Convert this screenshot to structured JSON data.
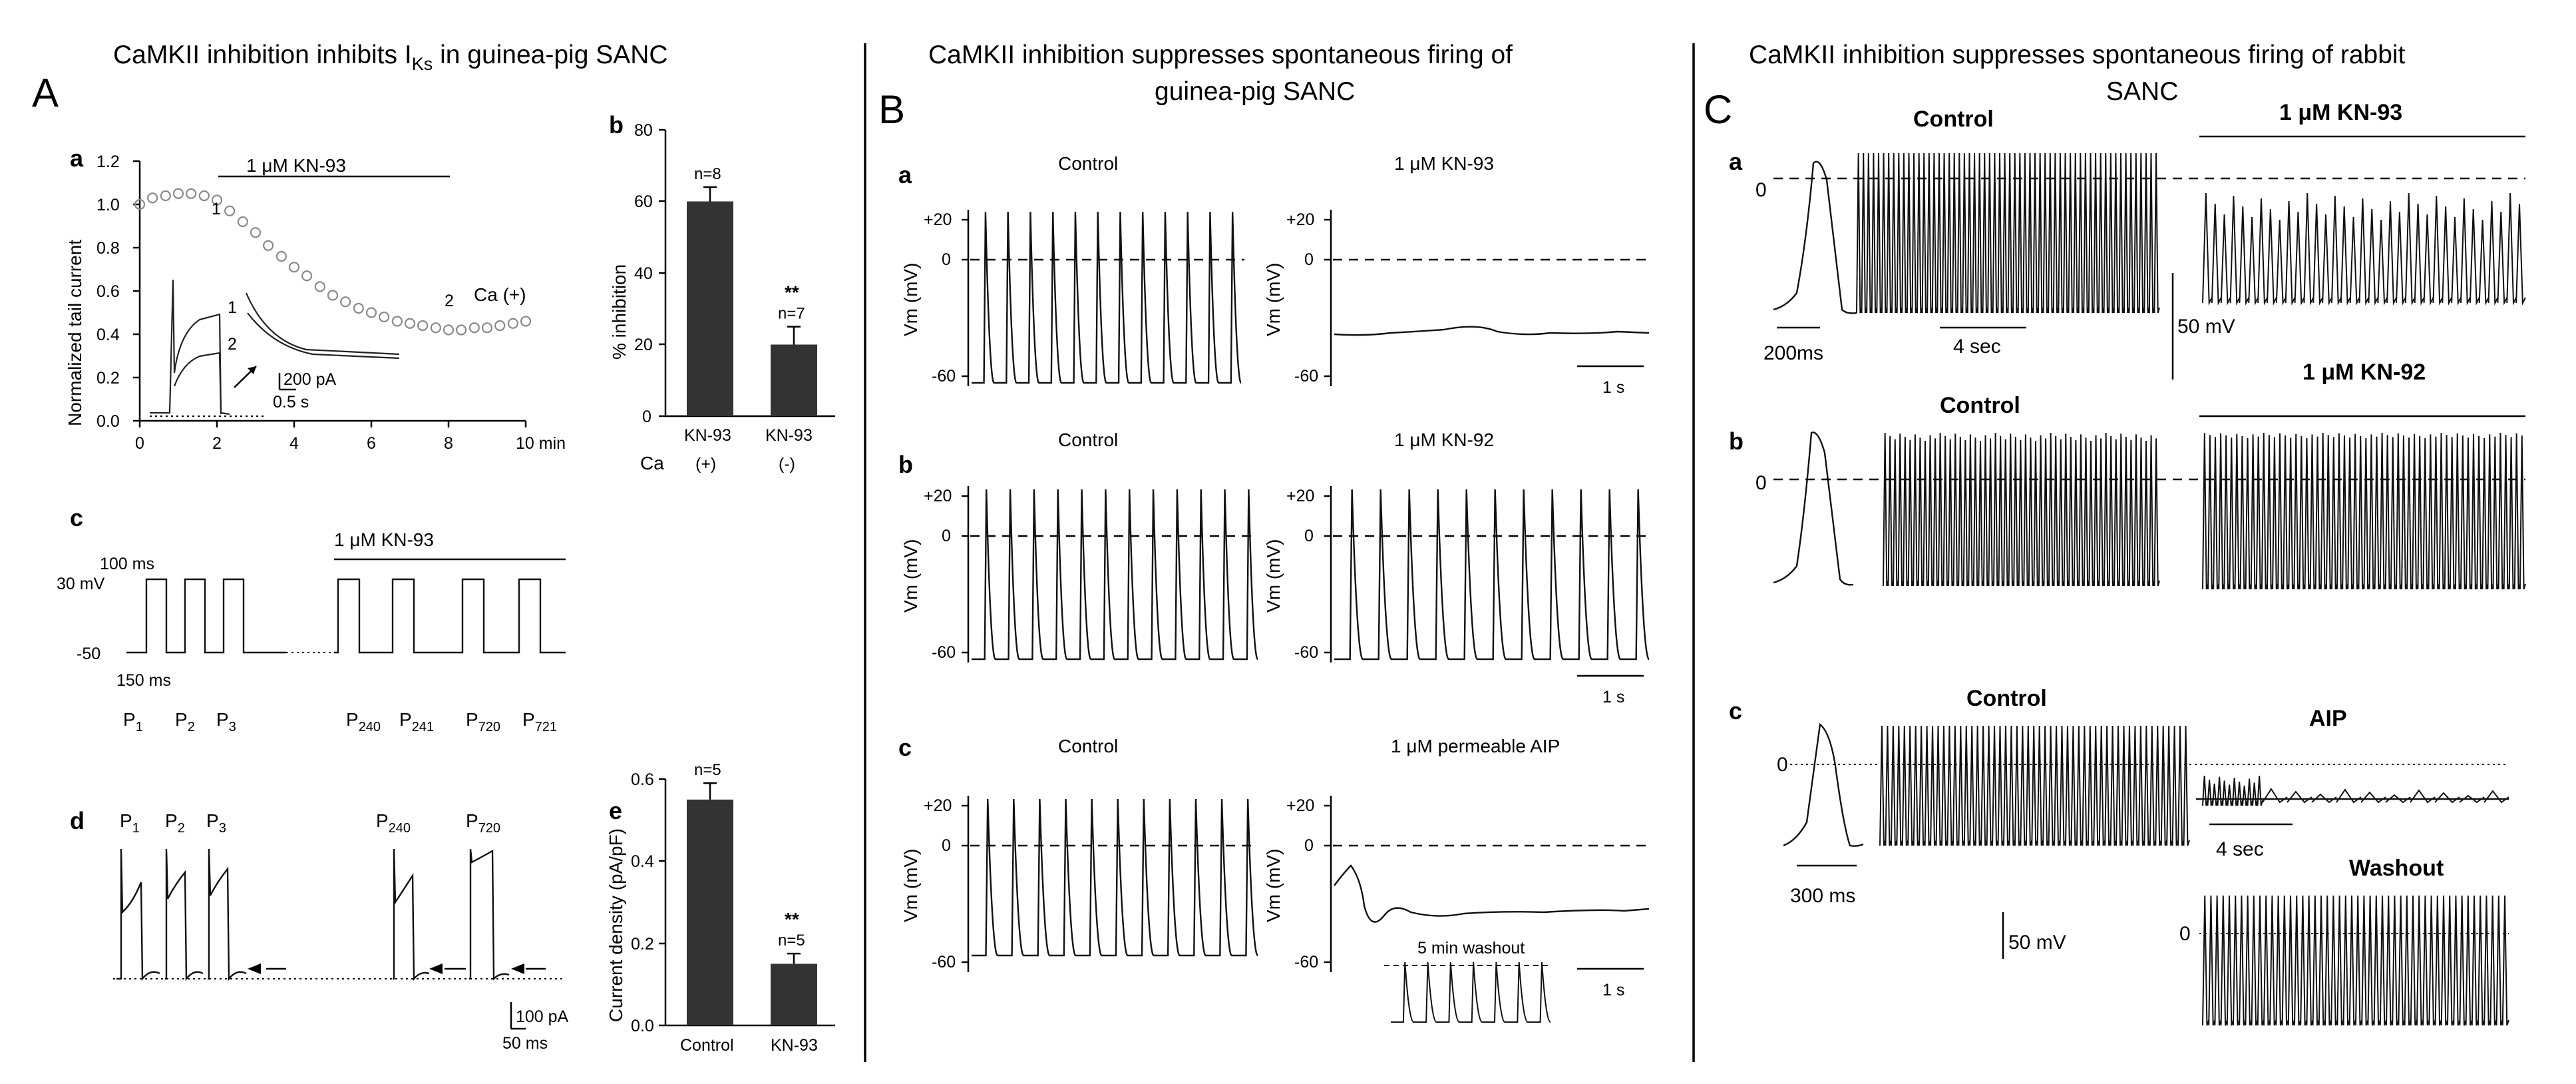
{
  "colors": {
    "trace": "#111111",
    "bar": "#333333",
    "marker": "#8a8a8a",
    "background": "#ffffff"
  },
  "sections": {
    "A": {
      "letter": "A",
      "title_main": "CaMKII inhibition inhibits I",
      "title_sub": "Ks",
      "title_tail": " in guinea-pig SANC"
    },
    "B": {
      "letter": "B",
      "title_line1": "CaMKII inhibition suppresses spontaneous firing of",
      "title_line2": "guinea-pig SANC"
    },
    "C": {
      "letter": "C",
      "title_line1": "CaMKII inhibition suppresses spontaneous firing of rabbit",
      "title_line2": "SANC"
    }
  },
  "panelA": {
    "a": {
      "label": "a",
      "ylabel": "Normalized tail current",
      "yticks": [
        "0.0",
        "0.2",
        "0.4",
        "0.6",
        "0.8",
        "1.0",
        "1.2"
      ],
      "xticks": [
        "0",
        "2",
        "4",
        "6",
        "8",
        "10 min"
      ],
      "drug": "1 μM KN-93",
      "ca_label": "Ca (+)",
      "mark1": "1",
      "mark2": "2",
      "inset_1": "1",
      "inset_2": "2",
      "scale_current": "200 pA",
      "scale_time": "0.5 s",
      "timecourse": {
        "x": [
          0,
          0.33,
          0.67,
          1.0,
          1.33,
          1.67,
          2.0,
          2.33,
          2.67,
          3.0,
          3.33,
          3.67,
          4.0,
          4.33,
          4.67,
          5.0,
          5.33,
          5.67,
          6.0,
          6.33,
          6.67,
          7.0,
          7.33,
          7.67,
          8.0,
          8.33,
          8.67,
          9.0,
          9.33,
          9.67,
          10.0
        ],
        "y": [
          1.0,
          1.03,
          1.04,
          1.05,
          1.05,
          1.04,
          1.02,
          0.97,
          0.92,
          0.87,
          0.81,
          0.76,
          0.71,
          0.67,
          0.62,
          0.58,
          0.55,
          0.52,
          0.5,
          0.48,
          0.46,
          0.45,
          0.44,
          0.43,
          0.42,
          0.42,
          0.43,
          0.43,
          0.44,
          0.45,
          0.46
        ]
      }
    },
    "b": {
      "label": "b",
      "ylabel": "% inhibition",
      "yticks": [
        "0",
        "20",
        "40",
        "60",
        "80"
      ],
      "ca_label": "Ca",
      "chart_data": {
        "type": "bar",
        "categories": [
          "KN-93 (+)",
          "KN-93 (-)"
        ],
        "values": [
          60,
          20
        ],
        "errors": [
          4,
          5
        ],
        "ylim": [
          0,
          80
        ],
        "ylabel": "% inhibition",
        "n_labels": [
          "n=8",
          "n=7"
        ],
        "stars": [
          "",
          "**"
        ]
      },
      "cat1_line1": "KN-93",
      "cat1_line2": "(+)",
      "cat2_line1": "KN-93",
      "cat2_line2": "(-)"
    },
    "c": {
      "label": "c",
      "pulse_duration": "100 ms",
      "interval": "150 ms",
      "v_high": "30 mV",
      "v_low": "-50",
      "drug": "1 μM KN-93",
      "pulses": [
        {
          "base": "P",
          "sub": "1"
        },
        {
          "base": "P",
          "sub": "2"
        },
        {
          "base": "P",
          "sub": "3"
        },
        {
          "base": "P",
          "sub": "240"
        },
        {
          "base": "P",
          "sub": "241"
        },
        {
          "base": "P",
          "sub": "720"
        },
        {
          "base": "P",
          "sub": "721"
        }
      ]
    },
    "d": {
      "label": "d",
      "pulses": [
        {
          "base": "P",
          "sub": "1"
        },
        {
          "base": "P",
          "sub": "2"
        },
        {
          "base": "P",
          "sub": "3"
        },
        {
          "base": "P",
          "sub": "240"
        },
        {
          "base": "P",
          "sub": "720"
        }
      ],
      "scale_current": "100 pA",
      "scale_time": "50 ms"
    },
    "e": {
      "label": "e",
      "ylabel": "Current density (pA/pF)",
      "yticks": [
        "0.0",
        "0.2",
        "0.4",
        "0.6"
      ],
      "chart_data": {
        "type": "bar",
        "categories": [
          "Control",
          "KN-93"
        ],
        "values": [
          0.55,
          0.15
        ],
        "errors": [
          0.04,
          0.025
        ],
        "ylim": [
          0,
          0.6
        ],
        "ylabel": "Current density (pA/pF)",
        "n_labels": [
          "n=5",
          "n=5"
        ],
        "stars": [
          "",
          "**"
        ]
      }
    }
  },
  "panelB": {
    "a": {
      "label": "a",
      "left": "Control",
      "right": "1 μM KN-93"
    },
    "b": {
      "label": "b",
      "left": "Control",
      "right": "1 μM KN-92"
    },
    "c": {
      "label": "c",
      "left": "Control",
      "right": "1 μM  permeable AIP",
      "washout": "5 min washout"
    },
    "ylabel": "Vm (mV)",
    "yticks": [
      "+20",
      "0",
      "-60"
    ],
    "scale": "1 s"
  },
  "panelC": {
    "a": {
      "label": "a",
      "control": "Control",
      "drug": "1 μM KN-93",
      "zero": "0",
      "scale_fast": "200ms",
      "scale_slow": "4 sec",
      "scale_v": "50 mV"
    },
    "b": {
      "label": "b",
      "control": "Control",
      "drug": "1 μM KN-92",
      "zero": "0"
    },
    "c": {
      "label": "c",
      "control": "Control",
      "drug": "AIP",
      "washout": "Washout",
      "zero": "0",
      "zero_wash": "0",
      "scale_fast": "300 ms",
      "scale_slow": "4 sec",
      "scale_v": "50 mV"
    }
  }
}
